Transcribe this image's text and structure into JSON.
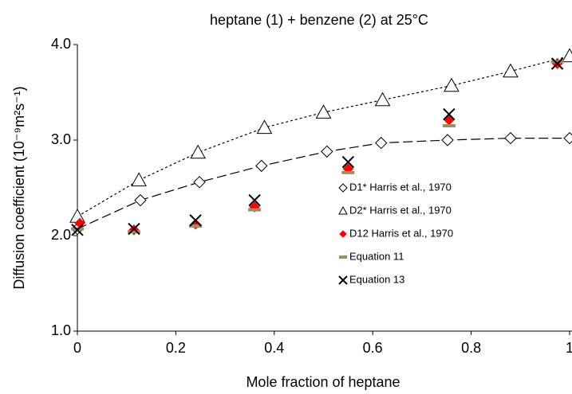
{
  "chart_data": {
    "type": "scatter",
    "title": "heptane (1) + benzene (2) at 25°C",
    "xlabel": "Mole fraction of heptane",
    "ylabel": "Diffusion coefficient (10⁻⁹m²s⁻¹)",
    "xlim": [
      0,
      1
    ],
    "xticks": [
      0,
      0.2,
      0.4,
      0.6,
      0.8,
      1
    ],
    "ylim": [
      1,
      4
    ],
    "yticks": [
      {
        "value": 1,
        "label": "1.0"
      },
      {
        "value": 2,
        "label": "2.0"
      },
      {
        "value": 3,
        "label": "3.0"
      },
      {
        "value": 4,
        "label": "4.0"
      }
    ],
    "grid": false,
    "legend": "inside right",
    "series": [
      {
        "name": "D1* Harris et al., 1970",
        "marker": "diamond-open",
        "color": "#000000",
        "line": "long-dash",
        "x": [
          0,
          0.128,
          0.248,
          0.374,
          0.507,
          0.617,
          0.752,
          0.88,
          1.0
        ],
        "values": [
          2.07,
          2.37,
          2.56,
          2.73,
          2.88,
          2.97,
          3.0,
          3.02,
          3.02
        ]
      },
      {
        "name": "D2* Harris et al., 1970",
        "marker": "triangle-open",
        "color": "#000000",
        "line": "short-dash",
        "x": [
          0,
          0.125,
          0.245,
          0.38,
          0.5,
          0.62,
          0.76,
          0.88,
          1.0
        ],
        "values": [
          2.2,
          2.58,
          2.87,
          3.13,
          3.29,
          3.42,
          3.57,
          3.72,
          3.88
        ]
      },
      {
        "name": "D12 Harris et al., 1970",
        "marker": "diamond-filled",
        "color": "#ff0000",
        "x": [
          0.005,
          0.115,
          0.24,
          0.36,
          0.55,
          0.755,
          0.975
        ],
        "values": [
          2.13,
          2.06,
          2.12,
          2.3,
          2.7,
          3.21,
          3.8
        ]
      },
      {
        "name": "Equation 11",
        "marker": "dash",
        "color": "#a08c64",
        "x": [
          0,
          0.115,
          0.24,
          0.36,
          0.55,
          0.755,
          0.975
        ],
        "values": [
          2.07,
          2.04,
          2.1,
          2.27,
          2.66,
          3.15,
          3.82
        ]
      },
      {
        "name": "Equation 13",
        "marker": "x",
        "color": "#000000",
        "x": [
          0,
          0.115,
          0.24,
          0.36,
          0.55,
          0.755,
          0.975
        ],
        "values": [
          2.06,
          2.07,
          2.16,
          2.37,
          2.77,
          3.27,
          3.8
        ]
      }
    ]
  }
}
